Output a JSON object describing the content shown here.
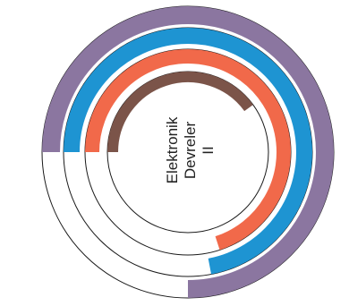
{
  "chart_data": {
    "type": "radial-bar",
    "center_label": [
      "Elektronik",
      "Devreler",
      "II"
    ],
    "max": 100,
    "series": [
      {
        "value": 75,
        "color": "#8b76a0"
      },
      {
        "value": 72,
        "color": "#1e94d2"
      },
      {
        "value": 70,
        "color": "#f1694a"
      },
      {
        "value": 40,
        "color": "#7b5449"
      }
    ]
  }
}
